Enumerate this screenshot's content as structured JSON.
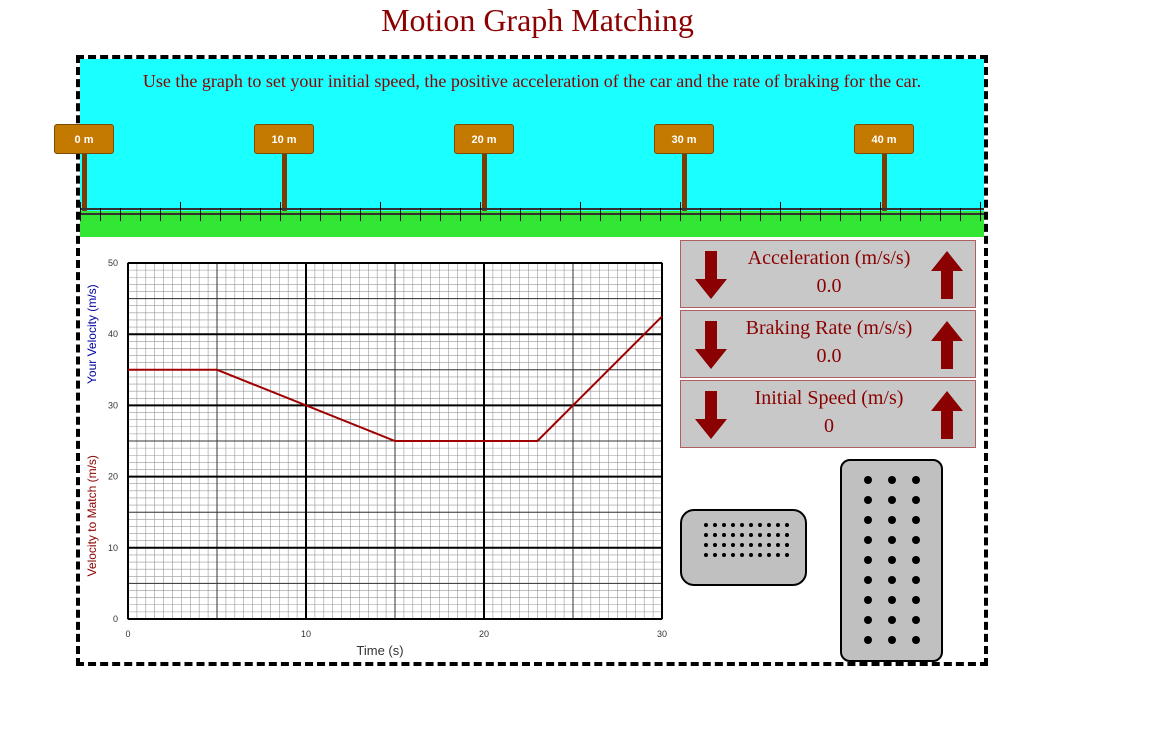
{
  "title": "Motion Graph Matching",
  "instructions": "Use the graph to set your initial speed, the positive acceleration of the car and the rate of braking for the car.",
  "track": {
    "signs": [
      "0 m",
      "10 m",
      "20 m",
      "30 m",
      "40 m"
    ],
    "sign_color": "#c47a00",
    "sky_color": "#1affff",
    "grass_color": "#33e633"
  },
  "controls": {
    "acceleration": {
      "label": "Acceleration (m/s/s)",
      "value": "0.0"
    },
    "braking": {
      "label": "Braking Rate (m/s/s)",
      "value": "0.0"
    },
    "initial_speed": {
      "label": "Initial Speed (m/s)",
      "value": "0"
    },
    "arrow_color": "#8b0000"
  },
  "pedals": {
    "brake": "brake-pedal",
    "gas": "gas-pedal"
  },
  "chart_data": {
    "type": "line",
    "xlabel": "Time (s)",
    "ylabel_match": "Velocity to Match (m/s)",
    "ylabel_yours": "Your Velocity (m/s)",
    "xlim": [
      0,
      30
    ],
    "ylim": [
      0,
      50
    ],
    "x_ticks": [
      0,
      10,
      20,
      30
    ],
    "y_ticks": [
      0,
      10,
      20,
      30,
      40,
      50
    ],
    "grid": true,
    "series": [
      {
        "color": "#a00000",
        "x": [
          0,
          5,
          15,
          23,
          30
        ],
        "y": [
          35,
          35,
          25,
          25,
          42.5
        ]
      }
    ]
  }
}
